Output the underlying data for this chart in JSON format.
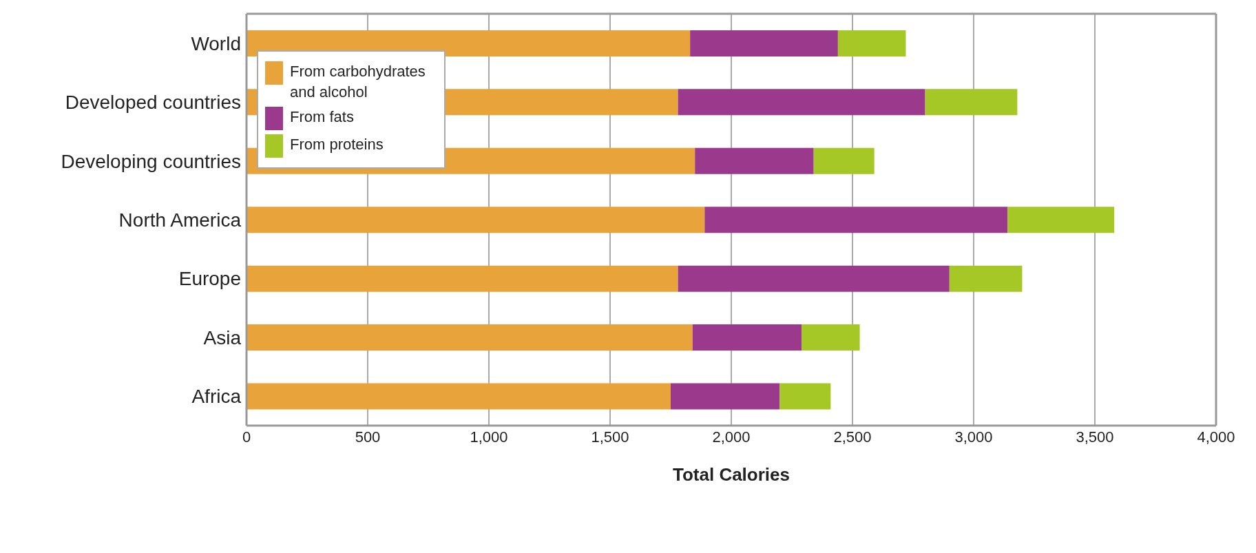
{
  "chart_data": {
    "type": "bar",
    "orientation": "horizontal",
    "stacked": true,
    "xlabel": "Total Calories",
    "categories": [
      "World",
      "Developed countries",
      "Developing countries",
      "North America",
      "Europe",
      "Asia",
      "Africa"
    ],
    "series": [
      {
        "name": "From carbohydrates and alcohol",
        "color": "#e8a33a",
        "values": [
          1830,
          1780,
          1850,
          1890,
          1780,
          1840,
          1750
        ]
      },
      {
        "name": "From fats",
        "color": "#9b3a8c",
        "values": [
          610,
          1020,
          490,
          1250,
          1120,
          450,
          450
        ]
      },
      {
        "name": "From proteins",
        "color": "#a6c827",
        "values": [
          280,
          380,
          250,
          440,
          300,
          240,
          210
        ]
      }
    ],
    "xlim": [
      0,
      4000
    ],
    "xticks": [
      0,
      500,
      {
        "value": 1000,
        "label": "1,000"
      },
      {
        "value": 1500,
        "label": "1,500"
      },
      {
        "value": 2000,
        "label": "2,000"
      },
      {
        "value": 2500,
        "label": "2,500"
      },
      {
        "value": 3000,
        "label": "3,000"
      },
      {
        "value": 3500,
        "label": "3,500"
      },
      {
        "value": 4000,
        "label": "4,000"
      }
    ],
    "grid": "x",
    "legend": "top left"
  }
}
